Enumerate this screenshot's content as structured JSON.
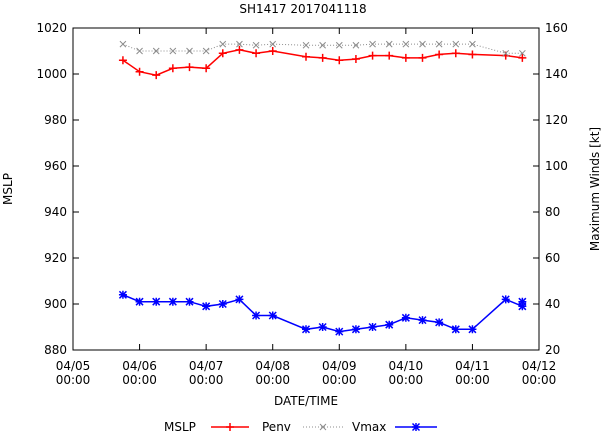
{
  "chart_data": {
    "type": "line",
    "title": "SH1417 2017041118",
    "xlabel": "DATE/TIME",
    "ylabel": "MSLP",
    "y2label": "Maximum Winds [kt]",
    "x_ticks": [
      {
        "day": 0,
        "date": "04/05",
        "time": "00:00"
      },
      {
        "day": 1,
        "date": "04/06",
        "time": "00:00"
      },
      {
        "day": 2,
        "date": "04/07",
        "time": "00:00"
      },
      {
        "day": 3,
        "date": "04/08",
        "time": "00:00"
      },
      {
        "day": 4,
        "date": "04/09",
        "time": "00:00"
      },
      {
        "day": 5,
        "date": "04/10",
        "time": "00:00"
      },
      {
        "day": 6,
        "date": "04/11",
        "time": "00:00"
      },
      {
        "day": 7,
        "date": "04/12",
        "time": "00:00"
      }
    ],
    "xlim": [
      0,
      7
    ],
    "ylim": [
      880,
      1020
    ],
    "y_ticks": [
      880,
      900,
      920,
      940,
      960,
      980,
      1000,
      1020
    ],
    "y2lim": [
      20,
      160
    ],
    "y2_ticks": [
      20,
      40,
      60,
      80,
      100,
      120,
      140,
      160
    ],
    "legend": {
      "placement": "bottom",
      "label": "MSLP",
      "entries": [
        "Penv",
        "Vmax"
      ]
    },
    "colors": {
      "penv": "#ff0000",
      "mslp": "#0000ff",
      "vmax": "#8c8c8c"
    },
    "series": [
      {
        "name": "Penv",
        "axis": "left",
        "x": [
          0.75,
          1.0,
          1.25,
          1.5,
          1.75,
          2.0,
          2.25,
          2.5,
          2.75,
          3.0,
          3.5,
          3.75,
          4.0,
          4.25,
          4.5,
          4.75,
          5.0,
          5.25,
          5.5,
          5.75,
          6.0,
          6.5,
          6.75
        ],
        "values": [
          1006,
          1001,
          999.5,
          1002.5,
          1003,
          1002.5,
          1009,
          1010.5,
          1009,
          1010,
          1007.5,
          1007,
          1006,
          1006.5,
          1008,
          1008,
          1007,
          1007,
          1008.5,
          1009,
          1008.5,
          1008,
          1007
        ]
      },
      {
        "name": "Vmax",
        "axis": "right",
        "x": [
          0.75,
          1.0,
          1.25,
          1.5,
          1.75,
          2.0,
          2.25,
          2.5,
          2.75,
          3.0,
          3.5,
          3.75,
          4.0,
          4.25,
          4.5,
          4.75,
          5.0,
          5.25,
          5.5,
          5.75,
          6.0,
          6.5,
          6.75
        ],
        "values": [
          153,
          150,
          150,
          150,
          150,
          150,
          153,
          153,
          152.5,
          153,
          152.5,
          152.5,
          152.5,
          152.5,
          153,
          153,
          153,
          153,
          153,
          153,
          153,
          149,
          149
        ]
      },
      {
        "name": "MSLP",
        "axis": "left",
        "x": [
          0.75,
          1.0,
          1.25,
          1.5,
          1.75,
          2.0,
          2.25,
          2.5,
          2.75,
          3.0,
          3.5,
          3.75,
          4.0,
          4.25,
          4.5,
          4.75,
          5.0,
          5.25,
          5.5,
          5.75,
          6.0,
          6.5,
          6.75,
          6.75
        ],
        "values": [
          904,
          901,
          901,
          901,
          901,
          899,
          900,
          902,
          895,
          895,
          889,
          890,
          888,
          889,
          890,
          891,
          894,
          893,
          892,
          889,
          889,
          902,
          899,
          901
        ]
      }
    ]
  }
}
